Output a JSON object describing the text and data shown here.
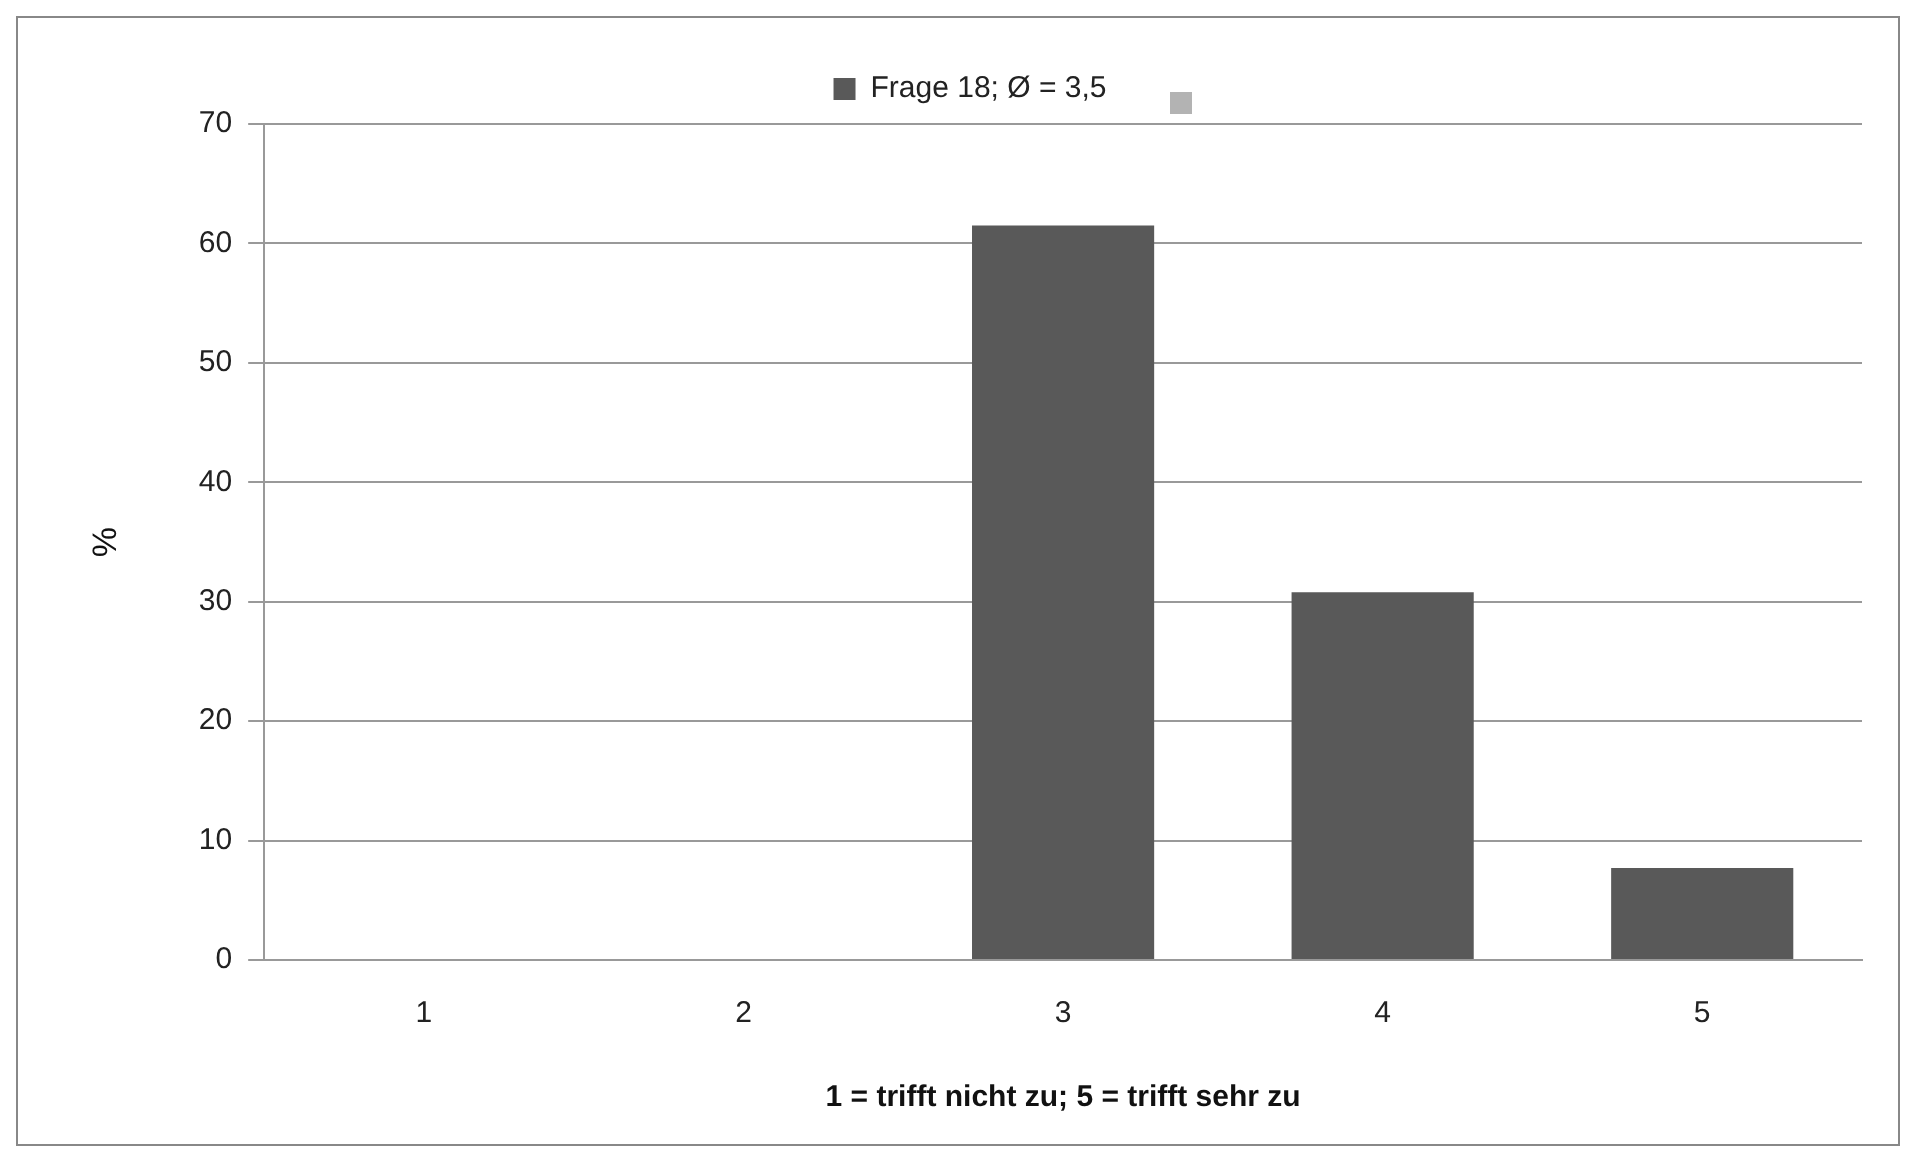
{
  "chart_data": {
    "type": "bar",
    "categories": [
      "1",
      "2",
      "3",
      "4",
      "5"
    ],
    "series": [
      {
        "name": "Frage 18; Ø = 3,5",
        "color": "#595959",
        "values": [
          0,
          0,
          61.5,
          30.8,
          7.7
        ]
      }
    ],
    "xlabel": "1 = trifft nicht zu; 5 = trifft sehr zu",
    "ylabel": "%",
    "ylim": [
      0,
      70
    ],
    "yticks": [
      0,
      10,
      20,
      30,
      40,
      50,
      60,
      70
    ],
    "grid": "y",
    "legend": "top"
  }
}
